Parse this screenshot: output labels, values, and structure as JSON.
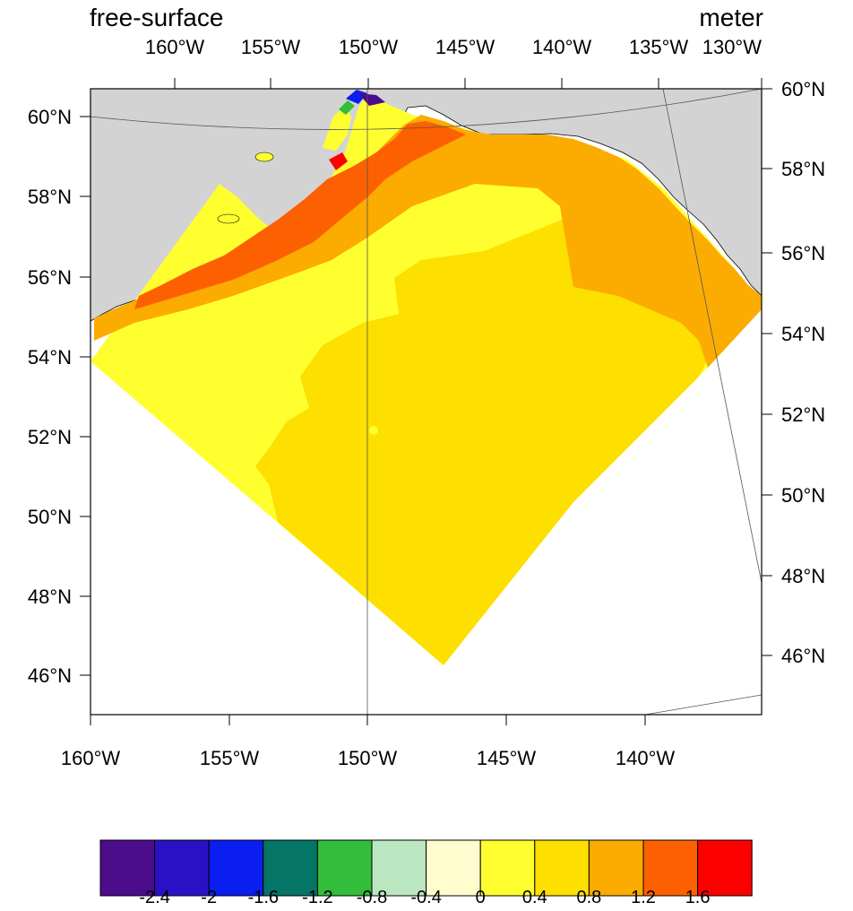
{
  "title_left": "free-surface",
  "title_right": "meter",
  "top_lon_labels": [
    "160°W",
    "155°W",
    "150°W",
    "145°W",
    "140°W",
    "135°W",
    "130°W"
  ],
  "bottom_lon_labels": [
    "160°W",
    "155°W",
    "150°W",
    "145°W",
    "140°W"
  ],
  "left_lat_labels": [
    "60°N",
    "58°N",
    "56°N",
    "54°N",
    "52°N",
    "50°N",
    "48°N",
    "46°N"
  ],
  "right_lat_labels": [
    "60°N",
    "58°N",
    "56°N",
    "54°N",
    "52°N",
    "50°N",
    "48°N",
    "46°N"
  ],
  "colorbar": {
    "colors": [
      "#4b0d8a",
      "#2a11c8",
      "#0a1ef0",
      "#047566",
      "#32bd3a",
      "#bbe7c0",
      "#fffdce",
      "#ffff30",
      "#fddf00",
      "#fcab00",
      "#fd6000",
      "#fd0000"
    ],
    "labels": [
      "-2.4",
      "-2",
      "-1.6",
      "-1.2",
      "-0.8",
      "-0.4",
      "0",
      "0.4",
      "0.8",
      "1.2",
      "1.6"
    ]
  },
  "colors": {
    "land": "#d3d3d3",
    "ocean_default": "#fddf00"
  }
}
